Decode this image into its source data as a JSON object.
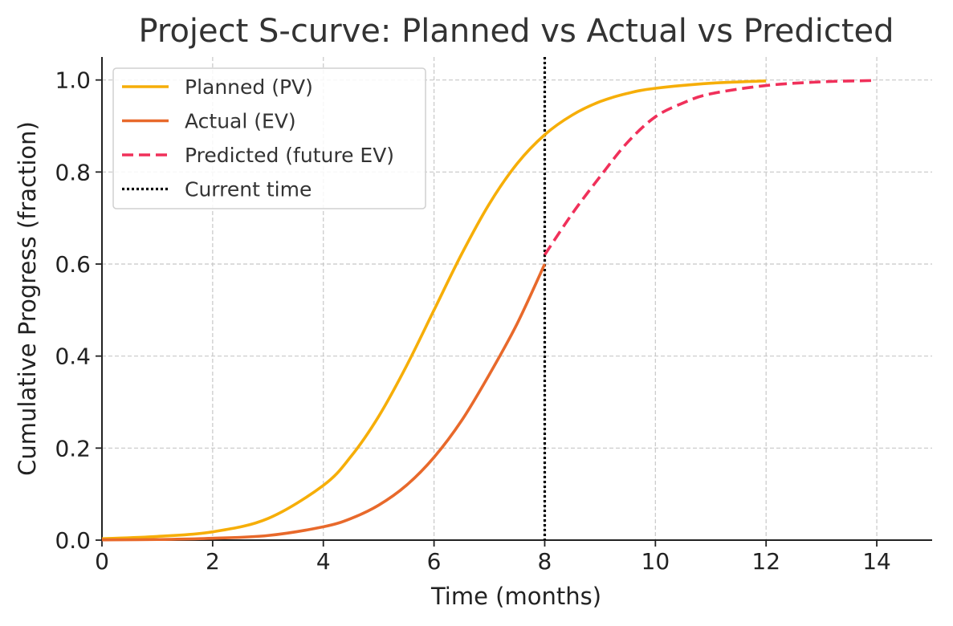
{
  "chart_data": {
    "type": "line",
    "title": "Project S-curve: Planned vs Actual vs Predicted",
    "xlabel": "Time (months)",
    "ylabel": "Cumulative Progress (fraction)",
    "xlim": [
      0,
      15
    ],
    "ylim": [
      0,
      1.05
    ],
    "x_ticks": [
      0,
      2,
      4,
      6,
      8,
      10,
      12,
      14
    ],
    "y_ticks": [
      0.0,
      0.2,
      0.4,
      0.6,
      0.8,
      1.0
    ],
    "x_tick_labels": [
      "0",
      "2",
      "4",
      "6",
      "8",
      "10",
      "12",
      "14"
    ],
    "y_tick_labels": [
      "0.0",
      "0.2",
      "0.4",
      "0.6",
      "0.8",
      "1.0"
    ],
    "grid": true,
    "legend_position": "top-left",
    "series": [
      {
        "name": "Planned (PV)",
        "color": "#F6AE08",
        "style": "solid",
        "x": [
          0,
          1,
          2,
          3,
          4,
          4.5,
          5,
          5.5,
          6,
          6.5,
          7,
          7.5,
          8,
          8.5,
          9,
          9.5,
          10,
          11,
          12
        ],
        "y": [
          0.003,
          0.008,
          0.018,
          0.047,
          0.119,
          0.182,
          0.269,
          0.378,
          0.5,
          0.622,
          0.731,
          0.818,
          0.881,
          0.924,
          0.953,
          0.971,
          0.982,
          0.993,
          0.998
        ]
      },
      {
        "name": "Actual (EV)",
        "color": "#E8692B",
        "style": "solid",
        "x": [
          0,
          1,
          2,
          3,
          4,
          4.5,
          5,
          5.5,
          6,
          6.5,
          7,
          7.5,
          8
        ],
        "y": [
          0.0005,
          0.0013,
          0.004,
          0.01,
          0.029,
          0.047,
          0.076,
          0.119,
          0.18,
          0.26,
          0.36,
          0.47,
          0.6
        ]
      },
      {
        "name": "Predicted (future EV)",
        "color": "#F0305A",
        "style": "dashed",
        "x": [
          8,
          8.5,
          9,
          9.5,
          10,
          10.5,
          11,
          12,
          13,
          14
        ],
        "y": [
          0.62,
          0.71,
          0.79,
          0.865,
          0.92,
          0.95,
          0.97,
          0.988,
          0.996,
          0.999
        ]
      }
    ],
    "annotations": [
      {
        "name": "Current time",
        "type": "vline",
        "x": 8,
        "color": "#000000",
        "style": "dotted"
      }
    ]
  }
}
